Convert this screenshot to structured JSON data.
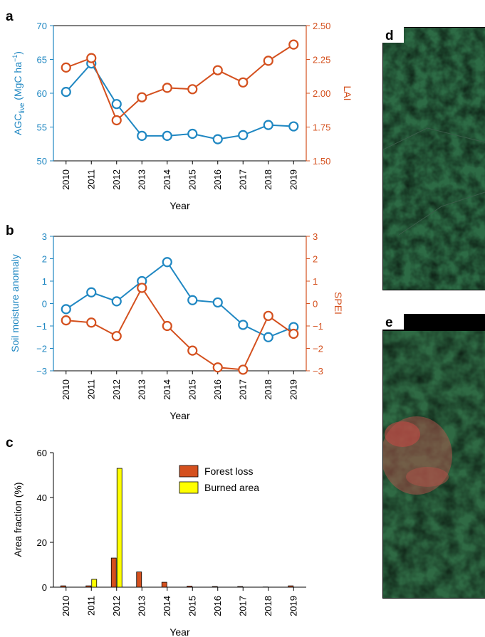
{
  "panel_labels": {
    "a": "a",
    "b": "b",
    "c": "c",
    "d": "d",
    "e": "e"
  },
  "colors": {
    "blue": "#1f87c2",
    "orange": "#d4501e",
    "loss_fill": "#d4501e",
    "burn_fill": "#ffff00"
  },
  "chart_data": [
    {
      "panel": "a",
      "type": "line",
      "x": [
        2010,
        2011,
        2012,
        2013,
        2014,
        2015,
        2016,
        2017,
        2018,
        2019
      ],
      "xlabel": "Year",
      "series": [
        {
          "axis": "left",
          "values": [
            60.2,
            64.4,
            58.4,
            53.7,
            53.7,
            54.0,
            53.2,
            53.8,
            55.3,
            55.1
          ]
        },
        {
          "axis": "right",
          "values": [
            2.19,
            2.26,
            1.8,
            1.97,
            2.04,
            2.03,
            2.17,
            2.08,
            2.24,
            2.36
          ]
        }
      ],
      "ylabel_left": {
        "main": "AGC",
        "sub": "live",
        "rest": " (MgC ha",
        "sup": "−1",
        "close": ")"
      },
      "ylabel_right": "LAI",
      "ylim_left": [
        50,
        70
      ],
      "ylim_right": [
        1.5,
        2.5
      ],
      "yticks_left": [
        "50",
        "55",
        "60",
        "65",
        "70"
      ],
      "yticks_right": [
        "1.50",
        "1.75",
        "2.00",
        "2.25",
        "2.50"
      ]
    },
    {
      "panel": "b",
      "type": "line",
      "x": [
        2010,
        2011,
        2012,
        2013,
        2014,
        2015,
        2016,
        2017,
        2018,
        2019
      ],
      "xlabel": "Year",
      "series": [
        {
          "axis": "left",
          "values": [
            -0.25,
            0.5,
            0.1,
            1.0,
            1.85,
            0.15,
            0.05,
            -0.95,
            -1.5,
            -1.05
          ]
        },
        {
          "axis": "right",
          "values": [
            -0.75,
            -0.85,
            -1.45,
            0.7,
            -1.0,
            -2.1,
            -2.85,
            -2.95,
            -0.55,
            -1.35
          ]
        }
      ],
      "ylabel_left": "Soil moisture anomaly",
      "ylabel_right": "SPEI",
      "ylim_left": [
        -3,
        3
      ],
      "ylim_right": [
        -3,
        3
      ],
      "yticks_left": [
        "−3",
        "−2",
        "−1",
        "0",
        "1",
        "2",
        "3"
      ],
      "yticks_right": [
        "−3",
        "−2",
        "−1",
        "0",
        "1",
        "2",
        "3"
      ]
    },
    {
      "panel": "c",
      "type": "bar",
      "categories": [
        "2010",
        "2011",
        "2012",
        "2013",
        "2014",
        "2015",
        "2016",
        "2017",
        "2018",
        "2019"
      ],
      "series": [
        {
          "name": "Forest loss",
          "values": [
            0.6,
            0.6,
            13.0,
            6.8,
            2.2,
            0.5,
            0.3,
            0.3,
            0.1,
            0.6
          ]
        },
        {
          "name": "Burned area",
          "values": [
            0.0,
            3.5,
            53.0,
            0.0,
            0.0,
            0.0,
            0.0,
            0.0,
            0.0,
            0.0
          ]
        }
      ],
      "xlabel": "Year",
      "ylabel": "Area fraction (%)",
      "ylim": [
        0,
        60
      ],
      "yticks": [
        "0",
        "20",
        "40",
        "60"
      ],
      "legend_position": "top-right"
    }
  ]
}
